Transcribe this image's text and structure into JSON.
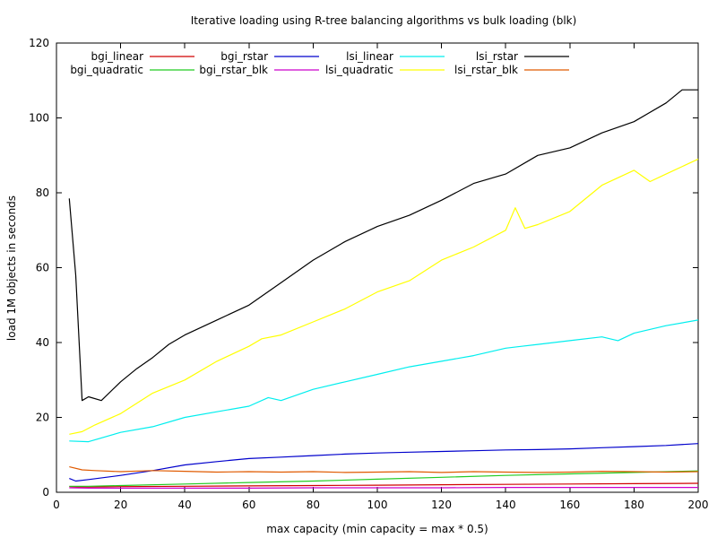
{
  "chart_data": {
    "type": "line",
    "title": "Iterative loading using R-tree balancing algorithms vs bulk loading (blk)",
    "xlabel": "max capacity (min capacity = max * 0.5)",
    "ylabel": "load 1M objects in seconds",
    "xlim": [
      0,
      200
    ],
    "ylim": [
      0,
      120
    ],
    "xticks": [
      0,
      20,
      40,
      60,
      80,
      100,
      120,
      140,
      160,
      180,
      200
    ],
    "yticks": [
      0,
      20,
      40,
      60,
      80,
      100,
      120
    ],
    "grid": false,
    "legend_position": "top",
    "series": [
      {
        "name": "bgi_linear",
        "color": "#d00000",
        "x": [
          4,
          10,
          20,
          40,
          60,
          80,
          100,
          120,
          140,
          160,
          180,
          200
        ],
        "y": [
          1.5,
          1.4,
          1.5,
          1.6,
          1.7,
          1.8,
          1.9,
          2.0,
          2.1,
          2.2,
          2.3,
          2.4
        ]
      },
      {
        "name": "bgi_quadratic",
        "color": "#22cc22",
        "x": [
          4,
          10,
          20,
          40,
          60,
          80,
          100,
          120,
          140,
          160,
          180,
          200
        ],
        "y": [
          1.6,
          1.6,
          1.8,
          2.2,
          2.6,
          3.0,
          3.5,
          4.0,
          4.5,
          4.9,
          5.3,
          5.7
        ]
      },
      {
        "name": "bgi_rstar",
        "color": "#0000cc",
        "x": [
          4,
          6,
          10,
          20,
          30,
          40,
          50,
          60,
          70,
          80,
          90,
          100,
          110,
          120,
          130,
          140,
          150,
          160,
          170,
          180,
          190,
          200
        ],
        "y": [
          3.7,
          3.0,
          3.4,
          4.5,
          5.8,
          7.3,
          8.2,
          9.0,
          9.4,
          9.8,
          10.2,
          10.5,
          10.7,
          10.9,
          11.1,
          11.3,
          11.4,
          11.6,
          11.9,
          12.2,
          12.5,
          13.0
        ]
      },
      {
        "name": "bgi_rstar_blk",
        "color": "#cc00cc",
        "x": [
          4,
          10,
          20,
          40,
          60,
          80,
          100,
          120,
          140,
          160,
          180,
          200
        ],
        "y": [
          1.2,
          1.1,
          1.1,
          1.1,
          1.1,
          1.2,
          1.2,
          1.2,
          1.3,
          1.3,
          1.3,
          1.3
        ]
      },
      {
        "name": "lsi_linear",
        "color": "#00eeee",
        "x": [
          4,
          10,
          20,
          30,
          40,
          50,
          60,
          66,
          70,
          80,
          90,
          100,
          110,
          120,
          130,
          140,
          145,
          150,
          160,
          170,
          175,
          180,
          190,
          200
        ],
        "y": [
          13.7,
          13.5,
          16.0,
          17.5,
          20.0,
          21.5,
          23.0,
          25.3,
          24.5,
          27.5,
          29.5,
          31.5,
          33.5,
          35.0,
          36.5,
          38.5,
          39.0,
          39.5,
          40.5,
          41.5,
          40.5,
          42.5,
          44.5,
          46.0
        ]
      },
      {
        "name": "lsi_quadratic",
        "color": "#ffff00",
        "x": [
          4,
          8,
          12,
          20,
          30,
          40,
          50,
          60,
          64,
          70,
          80,
          90,
          100,
          110,
          120,
          130,
          140,
          143,
          146,
          150,
          160,
          170,
          180,
          185,
          190,
          200
        ],
        "y": [
          15.5,
          16.2,
          18.0,
          21.0,
          26.5,
          30.0,
          35.0,
          39.0,
          41.0,
          42.0,
          45.5,
          49.0,
          53.5,
          56.5,
          62.0,
          65.5,
          70.0,
          76.0,
          70.5,
          71.5,
          75.0,
          82.0,
          86.0,
          83.0,
          85.0,
          89.0
        ]
      },
      {
        "name": "lsi_rstar",
        "color": "#000000",
        "x": [
          4,
          6,
          8,
          10,
          14,
          20,
          25,
          30,
          35,
          40,
          50,
          60,
          70,
          80,
          90,
          100,
          110,
          120,
          130,
          140,
          150,
          160,
          170,
          180,
          190,
          195,
          200
        ],
        "y": [
          78.5,
          58.0,
          24.5,
          25.5,
          24.5,
          29.5,
          33.0,
          36.0,
          39.5,
          42.0,
          46.0,
          50.0,
          56.0,
          62.0,
          67.0,
          71.0,
          74.0,
          78.0,
          82.5,
          85.0,
          90.0,
          92.0,
          96.0,
          99.0,
          104.0,
          107.5,
          107.5
        ]
      },
      {
        "name": "lsi_rstar_blk",
        "color": "#e05a00",
        "x": [
          4,
          8,
          12,
          20,
          30,
          40,
          50,
          60,
          70,
          80,
          90,
          100,
          110,
          120,
          130,
          140,
          150,
          160,
          170,
          180,
          190,
          200
        ],
        "y": [
          6.8,
          6.0,
          5.8,
          5.5,
          5.8,
          5.6,
          5.4,
          5.5,
          5.4,
          5.5,
          5.3,
          5.4,
          5.5,
          5.3,
          5.5,
          5.4,
          5.3,
          5.4,
          5.6,
          5.5,
          5.4,
          5.5
        ]
      }
    ]
  }
}
